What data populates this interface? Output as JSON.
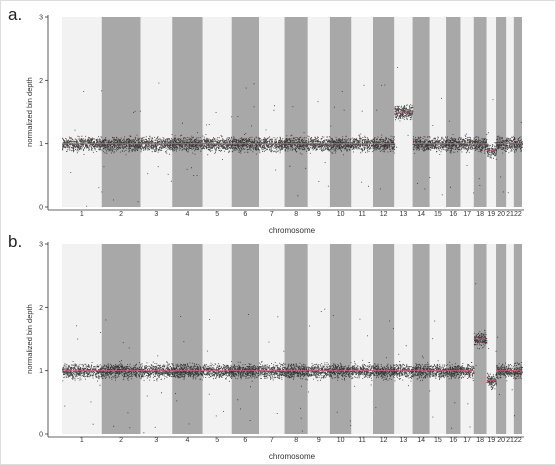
{
  "chart_data": [
    {
      "panel": "a.",
      "type": "scatter",
      "xlabel": "chromosome",
      "ylabel": "normalized bin depth",
      "ylim": [
        0,
        3
      ],
      "yticks": [
        0,
        1,
        2,
        3
      ],
      "categories": [
        "1",
        "2",
        "3",
        "4",
        "5",
        "6",
        "7",
        "8",
        "9",
        "10",
        "11",
        "12",
        "13",
        "14",
        "15",
        "16",
        "17",
        "18",
        "19",
        "20",
        "21",
        "22"
      ],
      "relative_width": [
        248,
        242,
        198,
        190,
        181,
        171,
        159,
        145,
        138,
        134,
        135,
        133,
        114,
        107,
        102,
        90,
        83,
        80,
        59,
        64,
        47,
        51
      ],
      "median_depth": [
        1,
        1,
        1,
        1,
        1,
        1,
        1,
        1,
        1,
        1,
        1,
        1,
        1.5,
        1,
        1,
        1,
        1,
        1,
        0.9,
        1,
        1,
        1
      ],
      "colors": {
        "band_light": "#f2f2f2",
        "band_dark": "#a8a8a8",
        "points": "#222222",
        "trend": "#e8607a"
      }
    },
    {
      "panel": "b.",
      "type": "scatter",
      "xlabel": "chromosome",
      "ylabel": "normalized bin depth",
      "ylim": [
        0,
        3
      ],
      "yticks": [
        0,
        1,
        2,
        3
      ],
      "categories": [
        "1",
        "2",
        "3",
        "4",
        "5",
        "6",
        "7",
        "8",
        "9",
        "10",
        "11",
        "12",
        "13",
        "14",
        "15",
        "16",
        "17",
        "18",
        "19",
        "20",
        "21",
        "22"
      ],
      "relative_width": [
        248,
        242,
        198,
        190,
        181,
        171,
        159,
        145,
        138,
        134,
        135,
        133,
        114,
        107,
        102,
        90,
        83,
        80,
        59,
        64,
        47,
        51
      ],
      "median_depth": [
        1,
        1,
        1,
        1,
        1,
        1,
        1,
        1,
        1,
        1,
        1,
        1,
        1,
        1,
        1,
        1,
        1,
        1.5,
        0.85,
        1,
        1,
        1
      ],
      "colors": {
        "band_light": "#f2f2f2",
        "band_dark": "#a8a8a8",
        "points": "#222222",
        "trend": "#e8607a"
      }
    }
  ]
}
